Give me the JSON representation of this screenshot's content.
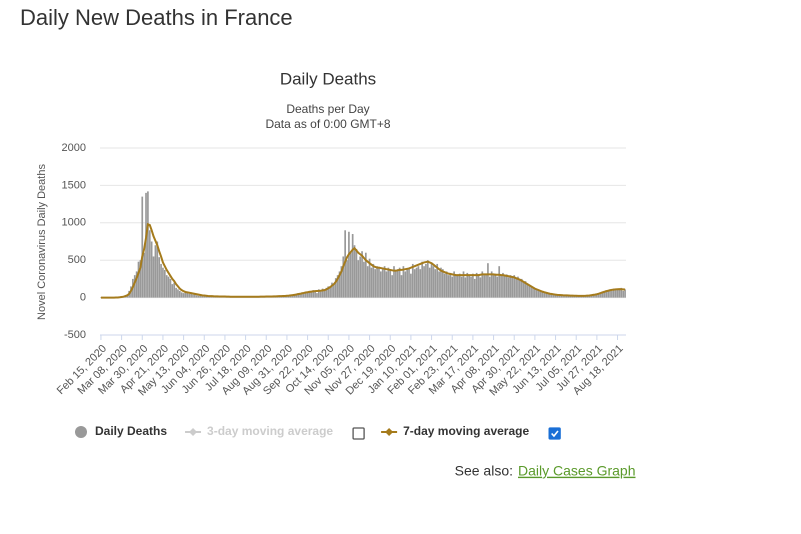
{
  "page_title": "Daily New Deaths in France",
  "see_also_label": "See also:",
  "see_also_link": "Daily Cases Graph",
  "chart_data": {
    "type": "bar",
    "title": "Daily Deaths",
    "subtitle": [
      "Deaths per Day",
      "Data as of 0:00 GMT+8"
    ],
    "y_label": "Novel Coronavirus Daily Deaths",
    "ylim": [
      -500,
      2000
    ],
    "yticks": [
      -500,
      0,
      500,
      1000,
      1500,
      2000
    ],
    "grid": true,
    "categories": [
      "Feb 15, 2020",
      null,
      null,
      null,
      null,
      null,
      null,
      null,
      null,
      null,
      null,
      "Mar 08, 2020",
      null,
      null,
      null,
      null,
      null,
      null,
      null,
      null,
      null,
      null,
      "Mar 30, 2020",
      null,
      null,
      null,
      null,
      null,
      null,
      null,
      null,
      null,
      null,
      "Apr 21, 2020",
      null,
      null,
      null,
      null,
      null,
      null,
      null,
      null,
      null,
      null,
      "May 13, 2020",
      null,
      null,
      null,
      null,
      null,
      null,
      null,
      null,
      null,
      null,
      "Jun 04, 2020",
      null,
      null,
      null,
      null,
      null,
      null,
      null,
      null,
      null,
      null,
      "Jun 26, 2020",
      null,
      null,
      null,
      null,
      null,
      null,
      null,
      null,
      null,
      null,
      "Jul 18, 2020",
      null,
      null,
      null,
      null,
      null,
      null,
      null,
      null,
      null,
      null,
      "Aug 09, 2020",
      null,
      null,
      null,
      null,
      null,
      null,
      null,
      null,
      null,
      null,
      "Aug 31, 2020",
      null,
      null,
      null,
      null,
      null,
      null,
      null,
      null,
      null,
      null,
      "Sep 22, 2020",
      null,
      null,
      null,
      null,
      null,
      null,
      null,
      null,
      null,
      null,
      "Oct 14, 2020",
      null,
      null,
      null,
      null,
      null,
      null,
      null,
      null,
      null,
      null,
      "Nov 05, 2020",
      null,
      null,
      null,
      null,
      null,
      null,
      null,
      null,
      null,
      null,
      "Nov 27, 2020",
      null,
      null,
      null,
      null,
      null,
      null,
      null,
      null,
      null,
      null,
      "Dec 19, 2020",
      null,
      null,
      null,
      null,
      null,
      null,
      null,
      null,
      null,
      null,
      "Jan 10, 2021",
      null,
      null,
      null,
      null,
      null,
      null,
      null,
      null,
      null,
      null,
      "Feb 01, 2021",
      null,
      null,
      null,
      null,
      null,
      null,
      null,
      null,
      null,
      null,
      "Feb 23, 2021",
      null,
      null,
      null,
      null,
      null,
      null,
      null,
      null,
      null,
      null,
      "Mar 17, 2021",
      null,
      null,
      null,
      null,
      null,
      null,
      null,
      null,
      null,
      null,
      "Apr 08, 2021",
      null,
      null,
      null,
      null,
      null,
      null,
      null,
      null,
      null,
      null,
      "Apr 30, 2021",
      null,
      null,
      null,
      null,
      null,
      null,
      null,
      null,
      null,
      null,
      "May 22, 2021",
      null,
      null,
      null,
      null,
      null,
      null,
      null,
      null,
      null,
      null,
      "Jun 13, 2021",
      null,
      null,
      null,
      null,
      null,
      null,
      null,
      null,
      null,
      null,
      "Jul 05, 2021",
      null,
      null,
      null,
      null,
      null,
      null,
      null,
      null,
      null,
      null,
      "Jul 27, 2021",
      null,
      null,
      null,
      null,
      null,
      null,
      null,
      null,
      null,
      null,
      "Aug 18, 2021",
      null,
      null,
      null,
      null
    ],
    "series": [
      {
        "name": "Daily Deaths",
        "color": "#999999",
        "kind": "bar",
        "visible": true,
        "values": [
          0,
          0,
          0,
          0,
          0,
          0,
          0,
          0,
          2,
          3,
          5,
          10,
          15,
          30,
          40,
          90,
          150,
          250,
          300,
          350,
          480,
          500,
          1350,
          600,
          1400,
          1420,
          900,
          750,
          550,
          700,
          750,
          540,
          450,
          400,
          370,
          300,
          280,
          250,
          180,
          200,
          130,
          110,
          90,
          70,
          60,
          80,
          60,
          50,
          70,
          40,
          60,
          30,
          25,
          35,
          20,
          30,
          25,
          15,
          20,
          25,
          15,
          20,
          10,
          15,
          20,
          12,
          15,
          10,
          14,
          12,
          10,
          15,
          12,
          8,
          14,
          10,
          12,
          15,
          10,
          12,
          8,
          12,
          15,
          10,
          14,
          12,
          15,
          10,
          16,
          14,
          12,
          18,
          15,
          20,
          14,
          22,
          18,
          25,
          20,
          30,
          28,
          35,
          30,
          45,
          40,
          60,
          50,
          70,
          55,
          80,
          65,
          90,
          70,
          100,
          85,
          60,
          110,
          80,
          120,
          90,
          130,
          150,
          140,
          200,
          180,
          260,
          300,
          350,
          420,
          550,
          900,
          500,
          880,
          600,
          850,
          700,
          650,
          500,
          550,
          620,
          480,
          600,
          420,
          520,
          400,
          450,
          380,
          420,
          400,
          350,
          380,
          420,
          350,
          400,
          380,
          300,
          420,
          350,
          380,
          400,
          300,
          420,
          350,
          380,
          400,
          320,
          450,
          380,
          400,
          420,
          380,
          480,
          420,
          450,
          500,
          400,
          470,
          420,
          380,
          450,
          350,
          400,
          380,
          320,
          350,
          300,
          330,
          280,
          350,
          300,
          300,
          320,
          280,
          350,
          270,
          330,
          300,
          280,
          320,
          250,
          330,
          300,
          270,
          350,
          300,
          320,
          460,
          280,
          350,
          300,
          320,
          280,
          420,
          300,
          330,
          290,
          310,
          270,
          300,
          280,
          300,
          260,
          280,
          230,
          250,
          200,
          220,
          180,
          170,
          150,
          140,
          120,
          110,
          100,
          90,
          80,
          70,
          65,
          60,
          55,
          50,
          45,
          40,
          35,
          38,
          32,
          35,
          30,
          28,
          30,
          25,
          28,
          22,
          25,
          20,
          22,
          24,
          20,
          25,
          30,
          28,
          35,
          40,
          45,
          55,
          60,
          70,
          80,
          90,
          100,
          95,
          110,
          90,
          120,
          100,
          115,
          105,
          130,
          90,
          110
        ]
      },
      {
        "name": "3-day moving average",
        "color": "#cccccc",
        "kind": "line",
        "visible": false
      },
      {
        "name": "7-day moving average",
        "color": "#a57b1c",
        "kind": "line",
        "visible": true,
        "values": [
          0,
          0,
          0,
          0,
          0,
          0,
          0,
          0,
          1,
          2,
          4,
          8,
          12,
          20,
          30,
          50,
          90,
          140,
          200,
          260,
          330,
          400,
          550,
          650,
          800,
          980,
          970,
          900,
          820,
          760,
          700,
          620,
          550,
          470,
          420,
          370,
          330,
          290,
          250,
          220,
          180,
          150,
          120,
          100,
          85,
          75,
          70,
          65,
          60,
          55,
          50,
          45,
          40,
          35,
          30,
          28,
          25,
          22,
          20,
          20,
          18,
          17,
          16,
          15,
          15,
          14,
          14,
          13,
          13,
          12,
          12,
          12,
          12,
          12,
          12,
          12,
          12,
          12,
          12,
          12,
          12,
          12,
          12,
          12,
          12,
          13,
          13,
          13,
          14,
          14,
          14,
          15,
          16,
          17,
          18,
          19,
          20,
          21,
          22,
          24,
          26,
          30,
          33,
          37,
          41,
          46,
          51,
          57,
          62,
          68,
          72,
          76,
          80,
          84,
          86,
          88,
          90,
          92,
          96,
          100,
          110,
          125,
          140,
          160,
          180,
          210,
          250,
          300,
          350,
          420,
          480,
          540,
          580,
          610,
          640,
          660,
          630,
          600,
          580,
          560,
          530,
          500,
          480,
          460,
          440,
          420,
          410,
          400,
          400,
          395,
          390,
          385,
          380,
          375,
          370,
          365,
          360,
          360,
          365,
          370,
          370,
          375,
          380,
          385,
          390,
          400,
          410,
          420,
          430,
          440,
          450,
          460,
          470,
          475,
          480,
          470,
          460,
          440,
          420,
          400,
          380,
          360,
          350,
          340,
          330,
          320,
          315,
          310,
          305,
          300,
          300,
          300,
          300,
          300,
          300,
          300,
          300,
          300,
          300,
          300,
          300,
          300,
          305,
          310,
          310,
          310,
          310,
          310,
          310,
          310,
          305,
          305,
          305,
          300,
          300,
          295,
          290,
          285,
          280,
          275,
          270,
          260,
          250,
          240,
          225,
          210,
          195,
          180,
          165,
          150,
          135,
          120,
          110,
          100,
          90,
          80,
          72,
          65,
          58,
          52,
          48,
          44,
          40,
          37,
          35,
          33,
          31,
          30,
          29,
          28,
          27,
          26,
          25,
          24,
          23,
          23,
          23,
          23,
          24,
          26,
          28,
          32,
          36,
          40,
          45,
          52,
          60,
          70,
          78,
          86,
          92,
          98,
          103,
          107,
          110,
          112,
          113,
          112,
          110,
          108
        ]
      }
    ]
  }
}
